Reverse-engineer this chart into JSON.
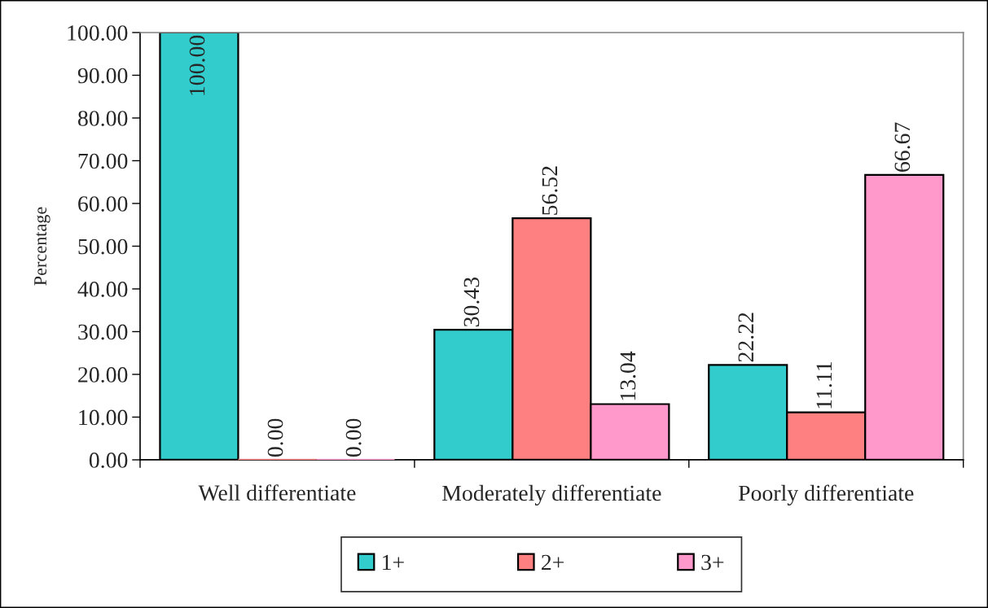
{
  "chart_data": {
    "type": "bar",
    "ylabel": "Percentage",
    "categories": [
      "Well differentiate",
      "Moderately differentiate",
      "Poorly differentiate"
    ],
    "series": [
      {
        "name": "1+",
        "color": "#33cccc",
        "values": [
          100,
          30.43,
          22.22
        ],
        "value_labels": [
          "100.00",
          "30.43",
          "22.22"
        ]
      },
      {
        "name": "2+",
        "color": "#ff8080",
        "values": [
          0,
          56.52,
          11.11
        ],
        "value_labels": [
          "0.00",
          "56.52",
          "11.11"
        ]
      },
      {
        "name": "3+",
        "color": "#ff99cc",
        "values": [
          0,
          13.04,
          66.67
        ],
        "value_labels": [
          "0.00",
          "13.04",
          "66.67"
        ]
      }
    ],
    "ylim": [
      0,
      100
    ],
    "yticks": [
      {
        "value": 0,
        "label": "0.00"
      },
      {
        "value": 10,
        "label": "10.00"
      },
      {
        "value": 20,
        "label": "20.00"
      },
      {
        "value": 30,
        "label": "30.00"
      },
      {
        "value": 40,
        "label": "40.00"
      },
      {
        "value": 50,
        "label": "50.00"
      },
      {
        "value": 60,
        "label": "60.00"
      },
      {
        "value": 70,
        "label": "70.00"
      },
      {
        "value": 80,
        "label": "80.00"
      },
      {
        "value": 90,
        "label": "90.00"
      },
      {
        "value": 100,
        "label": "100.00"
      }
    ],
    "grid": false,
    "legend": "bottom"
  }
}
